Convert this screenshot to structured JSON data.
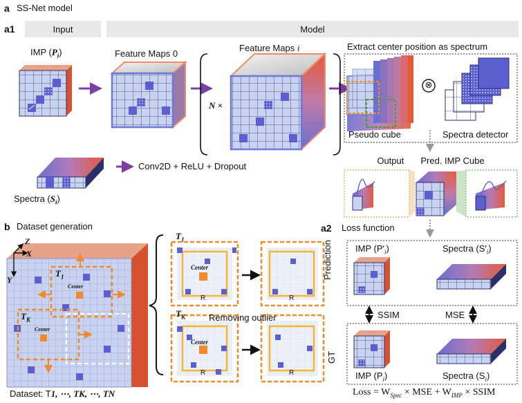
{
  "panel_a": {
    "letter": "a",
    "title": "SS-Net model",
    "sub_letter": "a1",
    "input_header": "Input",
    "model_header": "Model",
    "imp_label": "IMP (",
    "imp_sym": "P",
    "imp_sub": "i",
    "close_paren": ")",
    "feature_maps_0": "Feature Maps 0",
    "feature_maps_i_prefix": "Feature Maps ",
    "feature_maps_i_sym": "i",
    "n_times": "N ×",
    "extract_title": "Extract center position as spectrum",
    "pseudo_cube": "Pseudo cube",
    "spectra_detector": "Spectra  detector",
    "tensor_symbol": "⊗",
    "spectra_label": "Spectra (",
    "spectra_sym": "S",
    "spectra_sub": "i",
    "legend": "Conv2D + ReLU + Dropout",
    "output_header": "Output",
    "pred_header": "Pred. IMP Cube"
  },
  "panel_a2": {
    "sub_letter": "a2",
    "title": "Loss function",
    "prediction_row": "Prediction",
    "gt_row": "GT",
    "pred_imp": "IMP (P′",
    "pred_imp_sub": "i",
    "pred_spectra": "Spectra (S′",
    "pred_spectra_sub": "i",
    "gt_imp": "IMP (P",
    "gt_imp_sub": "i",
    "gt_spectra": "Spectra (S",
    "gt_spectra_sub": "i",
    "ssim": "SSIM",
    "mse": "MSE",
    "formula_prefix": "Loss = W",
    "formula_spec_sub": "Spec",
    "formula_mid": " × MSE + W",
    "formula_imp_sub": "IMP",
    "formula_end": " × SSIM"
  },
  "panel_b": {
    "letter": "b",
    "title": "Dataset generation",
    "axis_z": "Z",
    "axis_x": "X",
    "axis_y": "Y",
    "t1": "T",
    "t1_sub": "1",
    "tk": "T",
    "tk_sub": "K",
    "center": "Center",
    "r": "R",
    "removing_outlier": "Removing outlier",
    "dataset": "Dataset: T",
    "dataset_rest": "1, ⋯, TK, ⋯, TN"
  },
  "colors": {
    "purple_arrow": "#7b3fa6",
    "cube_face": "#c9d3ef",
    "cube_dark": "#5b5fcf",
    "orange": "#f08a2a",
    "gold": "#f2b632",
    "green": "#4d9a3e",
    "header_gray": "#e9e9e9"
  }
}
